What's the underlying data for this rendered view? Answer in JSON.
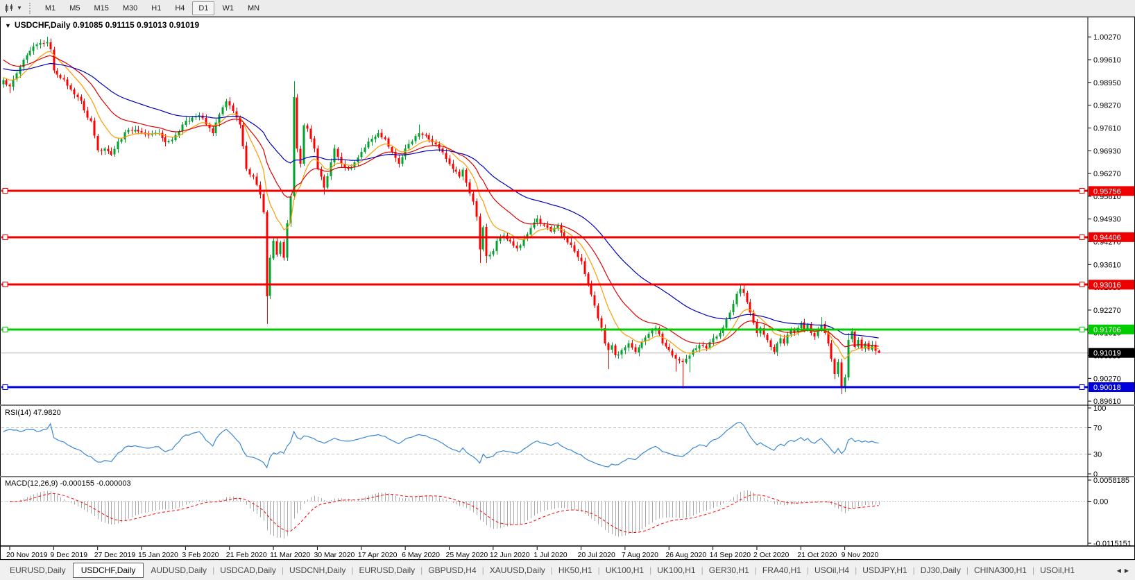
{
  "toolbar": {
    "timeframes": [
      "M1",
      "M5",
      "M15",
      "M30",
      "H1",
      "H4",
      "D1",
      "W1",
      "MN"
    ],
    "active": "D1"
  },
  "chart": {
    "title": "USDCHF,Daily  0.91085 0.91115 0.91013 0.91019"
  },
  "chart_data": {
    "type": "candlestick",
    "symbol": "USDCHF",
    "timeframe": "Daily",
    "ohlc_display": {
      "open": "0.91085",
      "high": "0.91115",
      "low": "0.91013",
      "close": "0.91019"
    },
    "x_axis_dates": [
      "20 Nov 2019",
      "9 Dec 2019",
      "27 Dec 2019",
      "15 Jan 2020",
      "3 Feb 2020",
      "21 Feb 2020",
      "11 Mar 2020",
      "30 Mar 2020",
      "17 Apr 2020",
      "6 May 2020",
      "25 May 2020",
      "12 Jun 2020",
      "1 Jul 2020",
      "20 Jul 2020",
      "7 Aug 2020",
      "26 Aug 2020",
      "14 Sep 2020",
      "2 Oct 2020",
      "21 Oct 2020",
      "9 Nov 2020"
    ],
    "y_axis_ticks": [
      "1.00270",
      "0.99610",
      "0.98950",
      "0.98270",
      "0.97610",
      "0.96930",
      "0.96270",
      "0.95610",
      "0.94930",
      "0.94270",
      "0.93610",
      "0.92930",
      "0.92270",
      "0.91610",
      "0.90950",
      "0.90270",
      "0.89610"
    ],
    "bars": 260,
    "close_keypoints": [
      [
        0,
        0.99
      ],
      [
        2,
        0.9882
      ],
      [
        4,
        0.992
      ],
      [
        7,
        0.9973
      ],
      [
        10,
        1.0005
      ],
      [
        13,
        1.0012
      ],
      [
        14,
        0.999
      ],
      [
        15,
        0.9928
      ],
      [
        18,
        0.9902
      ],
      [
        20,
        0.9873
      ],
      [
        23,
        0.984
      ],
      [
        25,
        0.979
      ],
      [
        26,
        0.978
      ],
      [
        28,
        0.9695
      ],
      [
        30,
        0.97
      ],
      [
        32,
        0.9682
      ],
      [
        34,
        0.972
      ],
      [
        37,
        0.9755
      ],
      [
        40,
        0.975
      ],
      [
        43,
        0.974
      ],
      [
        46,
        0.9745
      ],
      [
        48,
        0.9718
      ],
      [
        50,
        0.9725
      ],
      [
        53,
        0.977
      ],
      [
        56,
        0.979
      ],
      [
        58,
        0.9798
      ],
      [
        60,
        0.977
      ],
      [
        62,
        0.9745
      ],
      [
        64,
        0.98
      ],
      [
        66,
        0.9838
      ],
      [
        68,
        0.981
      ],
      [
        70,
        0.977
      ],
      [
        72,
        0.964
      ],
      [
        74,
        0.9618
      ],
      [
        76,
        0.9565
      ],
      [
        77,
        0.9513
      ],
      [
        78,
        0.9268
      ],
      [
        79,
        0.938
      ],
      [
        80,
        0.943
      ],
      [
        81,
        0.939
      ],
      [
        82,
        0.9425
      ],
      [
        83,
        0.938
      ],
      [
        84,
        0.9482
      ],
      [
        85,
        0.956
      ],
      [
        86,
        0.985
      ],
      [
        87,
        0.97
      ],
      [
        88,
        0.9655
      ],
      [
        89,
        0.9768
      ],
      [
        90,
        0.9758
      ],
      [
        92,
        0.97
      ],
      [
        93,
        0.964
      ],
      [
        95,
        0.9585
      ],
      [
        97,
        0.966
      ],
      [
        98,
        0.97
      ],
      [
        100,
        0.9655
      ],
      [
        102,
        0.964
      ],
      [
        104,
        0.966
      ],
      [
        106,
        0.969
      ],
      [
        108,
        0.972
      ],
      [
        111,
        0.9745
      ],
      [
        113,
        0.9728
      ],
      [
        115,
        0.969
      ],
      [
        117,
        0.9655
      ],
      [
        119,
        0.97
      ],
      [
        121,
        0.972
      ],
      [
        123,
        0.9745
      ],
      [
        125,
        0.9738
      ],
      [
        127,
        0.9718
      ],
      [
        129,
        0.97
      ],
      [
        131,
        0.967
      ],
      [
        133,
        0.964
      ],
      [
        135,
        0.9618
      ],
      [
        136,
        0.9638
      ],
      [
        137,
        0.96
      ],
      [
        139,
        0.9545
      ],
      [
        140,
        0.95
      ],
      [
        141,
        0.9405
      ],
      [
        142,
        0.947
      ],
      [
        143,
        0.9385
      ],
      [
        144,
        0.939
      ],
      [
        145,
        0.94
      ],
      [
        146,
        0.943
      ],
      [
        148,
        0.9445
      ],
      [
        150,
        0.9428
      ],
      [
        152,
        0.9408
      ],
      [
        154,
        0.9435
      ],
      [
        156,
        0.9468
      ],
      [
        158,
        0.9495
      ],
      [
        160,
        0.9475
      ],
      [
        162,
        0.9458
      ],
      [
        164,
        0.9475
      ],
      [
        166,
        0.944
      ],
      [
        168,
        0.9418
      ],
      [
        170,
        0.9382
      ],
      [
        171,
        0.937
      ],
      [
        173,
        0.93
      ],
      [
        175,
        0.924
      ],
      [
        177,
        0.9175
      ],
      [
        178,
        0.913
      ],
      [
        179,
        0.911
      ],
      [
        180,
        0.9125
      ],
      [
        181,
        0.9095
      ],
      [
        183,
        0.911
      ],
      [
        185,
        0.913
      ],
      [
        187,
        0.9105
      ],
      [
        189,
        0.9135
      ],
      [
        191,
        0.9158
      ],
      [
        193,
        0.9175
      ],
      [
        195,
        0.913
      ],
      [
        197,
        0.911
      ],
      [
        199,
        0.9085
      ],
      [
        201,
        0.9075
      ],
      [
        202,
        0.9085
      ],
      [
        204,
        0.911
      ],
      [
        206,
        0.9125
      ],
      [
        208,
        0.9115
      ],
      [
        210,
        0.9145
      ],
      [
        212,
        0.916
      ],
      [
        214,
        0.92
      ],
      [
        215,
        0.922
      ],
      [
        216,
        0.9245
      ],
      [
        217,
        0.9275
      ],
      [
        218,
        0.929
      ],
      [
        219,
        0.9278
      ],
      [
        220,
        0.925
      ],
      [
        221,
        0.922
      ],
      [
        222,
        0.919
      ],
      [
        223,
        0.916
      ],
      [
        224,
        0.9175
      ],
      [
        225,
        0.9155
      ],
      [
        226,
        0.914
      ],
      [
        227,
        0.912
      ],
      [
        228,
        0.9105
      ],
      [
        229,
        0.913
      ],
      [
        230,
        0.9145
      ],
      [
        231,
        0.913
      ],
      [
        232,
        0.9155
      ],
      [
        233,
        0.917
      ],
      [
        234,
        0.916
      ],
      [
        235,
        0.9175
      ],
      [
        236,
        0.919
      ],
      [
        237,
        0.917
      ],
      [
        238,
        0.9185
      ],
      [
        239,
        0.916
      ],
      [
        240,
        0.915
      ],
      [
        241,
        0.917
      ],
      [
        242,
        0.9185
      ],
      [
        243,
        0.916
      ],
      [
        244,
        0.913
      ],
      [
        245,
        0.9085
      ],
      [
        246,
        0.904
      ],
      [
        247,
        0.9075
      ],
      [
        248,
        0.9
      ],
      [
        249,
        0.903
      ],
      [
        250,
        0.914
      ],
      [
        251,
        0.9165
      ],
      [
        252,
        0.912
      ],
      [
        253,
        0.914
      ],
      [
        254,
        0.9115
      ],
      [
        255,
        0.913
      ],
      [
        256,
        0.9112
      ],
      [
        257,
        0.9125
      ],
      [
        258,
        0.9108
      ],
      [
        259,
        0.91019
      ]
    ],
    "wick_overrides": {
      "high": {
        "13": 1.0027,
        "66": 0.9845,
        "86": 0.9897,
        "123": 0.977,
        "158": 0.9505,
        "218": 0.9304,
        "242": 0.9207,
        "250": 0.916
      },
      "low": {
        "2": 0.9863,
        "78": 0.9187,
        "95": 0.9565,
        "141": 0.9365,
        "143": 0.9365,
        "179": 0.9055,
        "199": 0.9047,
        "201": 0.8998,
        "203": 0.9045,
        "246": 0.9025,
        "248": 0.8982
      }
    },
    "last_candle": {
      "open": 0.91085,
      "high": 0.91115,
      "low": 0.91013,
      "close": 0.91019
    },
    "horizontal_lines": [
      {
        "price": 0.95756,
        "label": "0.95756",
        "color": "#ee0000",
        "width": 3
      },
      {
        "price": 0.94406,
        "label": "0.94406",
        "color": "#ee0000",
        "width": 3
      },
      {
        "price": 0.93016,
        "label": "0.93016",
        "color": "#ee0000",
        "width": 3
      },
      {
        "price": 0.91706,
        "label": "0.91706",
        "color": "#00cc00",
        "width": 3
      },
      {
        "price": 0.90018,
        "label": "0.90018",
        "color": "#0000dd",
        "width": 3
      }
    ],
    "current_price": {
      "value": 0.91019,
      "label": "0.91019",
      "line_color": "#b8b8b8",
      "box_color": "#000000"
    },
    "moving_averages": [
      {
        "period": 10,
        "color": "#ff9900",
        "seed": 0.991
      },
      {
        "period": 22,
        "color": "#dd0000",
        "seed": 0.9965
      },
      {
        "period": 50,
        "color": "#0000bb",
        "seed": 0.9935
      }
    ],
    "candle_up_color": "#00a32e",
    "candle_down_color": "#ff0000"
  },
  "rsi": {
    "label": "RSI(14) 47.9820",
    "period": 14,
    "levels": [
      70,
      30
    ],
    "axis_labels": [
      "100",
      "70",
      "30",
      "0"
    ],
    "line_color": "#3a87d4"
  },
  "macd": {
    "label": "MACD(12,26,9) -0.000155 -0.000003",
    "fast": 12,
    "slow": 26,
    "signal": 9,
    "axis_max": "0.0058185",
    "axis_zero": "0.00",
    "axis_min": "-0.0115151",
    "hist_color": "#a8a8a8",
    "signal_color": "#ff0000"
  },
  "tabs": {
    "items": [
      "EURUSD,Daily",
      "USDCHF,Daily",
      "AUDUSD,Daily",
      "USDCAD,Daily",
      "USDCNH,Daily",
      "EURUSD,Daily",
      "GBPUSD,H4",
      "XAUUSD,Daily",
      "HK50,H1",
      "UK100,H1",
      "UK100,H1",
      "GER30,H1",
      "FRA40,H1",
      "USOil,H4",
      "USDJPY,H1",
      "DJ30,Daily",
      "CHINA300,H1",
      "USOil,H1"
    ],
    "active_index": 1
  }
}
